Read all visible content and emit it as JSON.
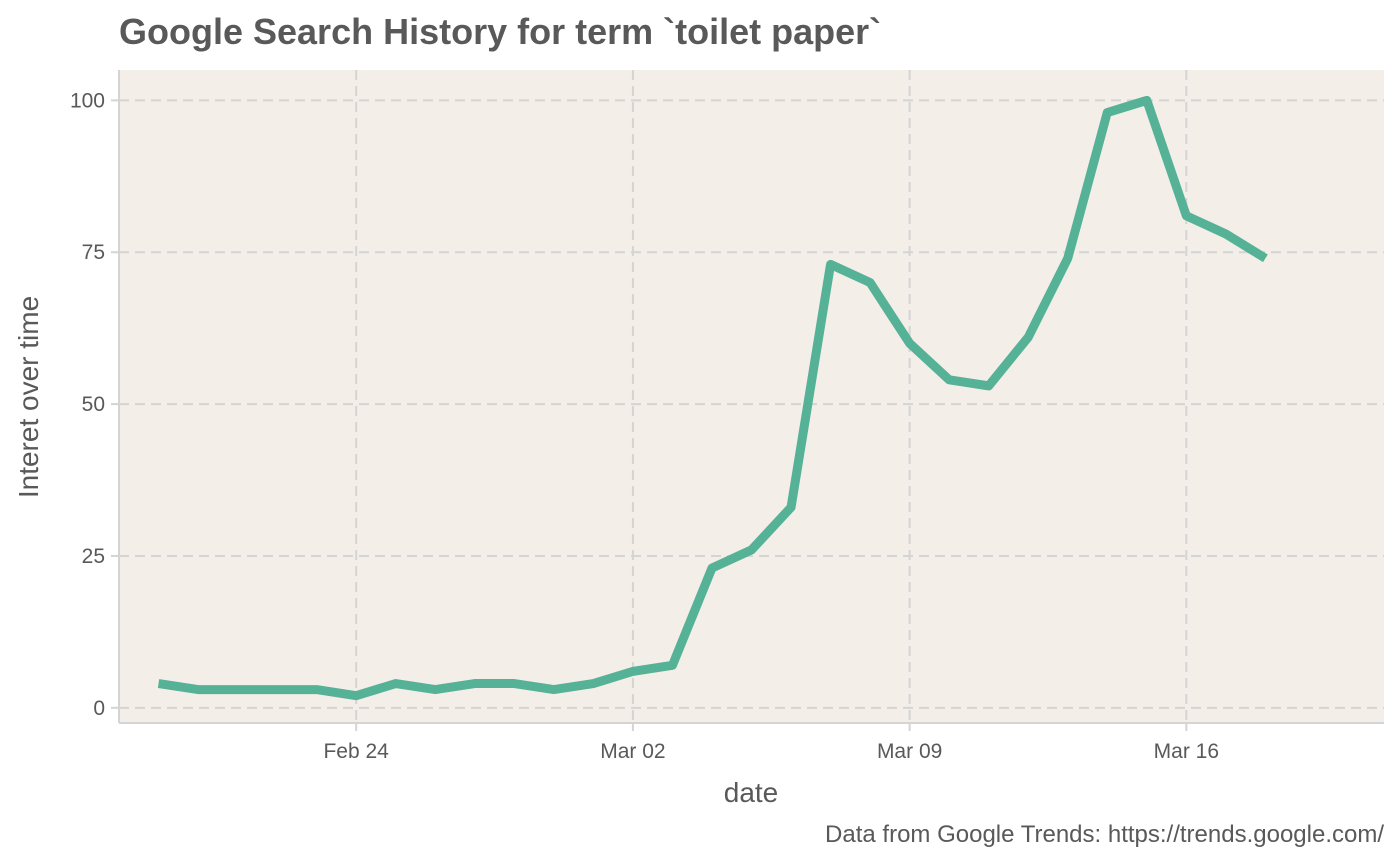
{
  "chart_data": {
    "type": "line",
    "title": "Google Search History for term `toilet paper`",
    "xlabel": "date",
    "ylabel": "Interet over time",
    "caption": "Data from  Google Trends: https://trends.google.com/",
    "x_ticks": [
      {
        "date": "2020-02-24",
        "label": "Feb 24"
      },
      {
        "date": "2020-03-02",
        "label": "Mar 02"
      },
      {
        "date": "2020-03-09",
        "label": "Mar 09"
      },
      {
        "date": "2020-03-16",
        "label": "Mar 16"
      }
    ],
    "y_ticks": [
      0,
      25,
      50,
      75,
      100
    ],
    "xlim": [
      "2020-02-18",
      "2020-03-21"
    ],
    "ylim": [
      -2.5,
      105
    ],
    "grid": true,
    "panel_background": "#f4eee8",
    "series": [
      {
        "color": "#56b296",
        "x": [
          "2020-02-19",
          "2020-02-20",
          "2020-02-21",
          "2020-02-22",
          "2020-02-23",
          "2020-02-24",
          "2020-02-25",
          "2020-02-26",
          "2020-02-27",
          "2020-02-28",
          "2020-02-29",
          "2020-03-01",
          "2020-03-02",
          "2020-03-03",
          "2020-03-04",
          "2020-03-05",
          "2020-03-06",
          "2020-03-07",
          "2020-03-08",
          "2020-03-09",
          "2020-03-10",
          "2020-03-11",
          "2020-03-12",
          "2020-03-13",
          "2020-03-14",
          "2020-03-15",
          "2020-03-16",
          "2020-03-17",
          "2020-03-18"
        ],
        "values": [
          4,
          3,
          3,
          3,
          3,
          2,
          4,
          3,
          4,
          4,
          3,
          4,
          6,
          7,
          23,
          26,
          33,
          73,
          70,
          60,
          54,
          53,
          61,
          74,
          98,
          100,
          81,
          78,
          74
        ]
      }
    ]
  }
}
